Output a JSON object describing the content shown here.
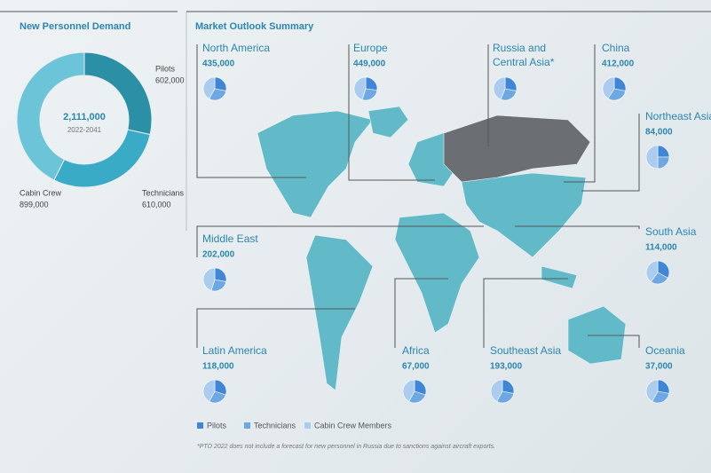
{
  "chart_data": [
    {
      "type": "donut",
      "title": "New Personnel Demand",
      "center_value": "2,111,000",
      "center_subtitle": "2022-2041",
      "categories": [
        "Pilots",
        "Technicians",
        "Cabin Crew"
      ],
      "values": [
        602000,
        610000,
        899000
      ],
      "value_labels": [
        "602,000",
        "610,000",
        "899,000"
      ],
      "colors": [
        "#2b8fa5",
        "#3aabc6",
        "#6cc4d9"
      ]
    },
    {
      "type": "map",
      "title": "Market Outlook Summary",
      "legend": {
        "names": [
          "Pilots",
          "Technicians",
          "Cabin Crew Members"
        ],
        "colors": [
          "#3f86d6",
          "#6ea8e3",
          "#abcbef"
        ]
      },
      "regions": [
        {
          "name": "North America",
          "value": 435000,
          "value_label": "435,000",
          "shares": [
            28,
            30,
            42
          ]
        },
        {
          "name": "Europe",
          "value": 449000,
          "value_label": "449,000",
          "shares": [
            27,
            28,
            45
          ]
        },
        {
          "name": "Russia and Central Asia*",
          "value": null,
          "value_label": null,
          "shares": [
            28,
            28,
            44
          ]
        },
        {
          "name": "China",
          "value": 412000,
          "value_label": "412,000",
          "shares": [
            28,
            31,
            41
          ]
        },
        {
          "name": "Northeast Asia",
          "value": 84000,
          "value_label": "84,000",
          "shares": [
            25,
            25,
            50
          ]
        },
        {
          "name": "Middle East",
          "value": 202000,
          "value_label": "202,000",
          "shares": [
            28,
            27,
            45
          ]
        },
        {
          "name": "South Asia",
          "value": 114000,
          "value_label": "114,000",
          "shares": [
            33,
            27,
            40
          ]
        },
        {
          "name": "Latin America",
          "value": 118000,
          "value_label": "118,000",
          "shares": [
            30,
            28,
            42
          ]
        },
        {
          "name": "Africa",
          "value": 67000,
          "value_label": "67,000",
          "shares": [
            30,
            28,
            42
          ]
        },
        {
          "name": "Southeast Asia",
          "value": 193000,
          "value_label": "193,000",
          "shares": [
            28,
            30,
            42
          ]
        },
        {
          "name": "Oceania",
          "value": 37000,
          "value_label": "37,000",
          "shares": [
            28,
            30,
            42
          ]
        }
      ],
      "footnote": "*PTO 2022 does not include a forecast for new personnel in Russia due to sanctions against aircraft exports."
    }
  ]
}
